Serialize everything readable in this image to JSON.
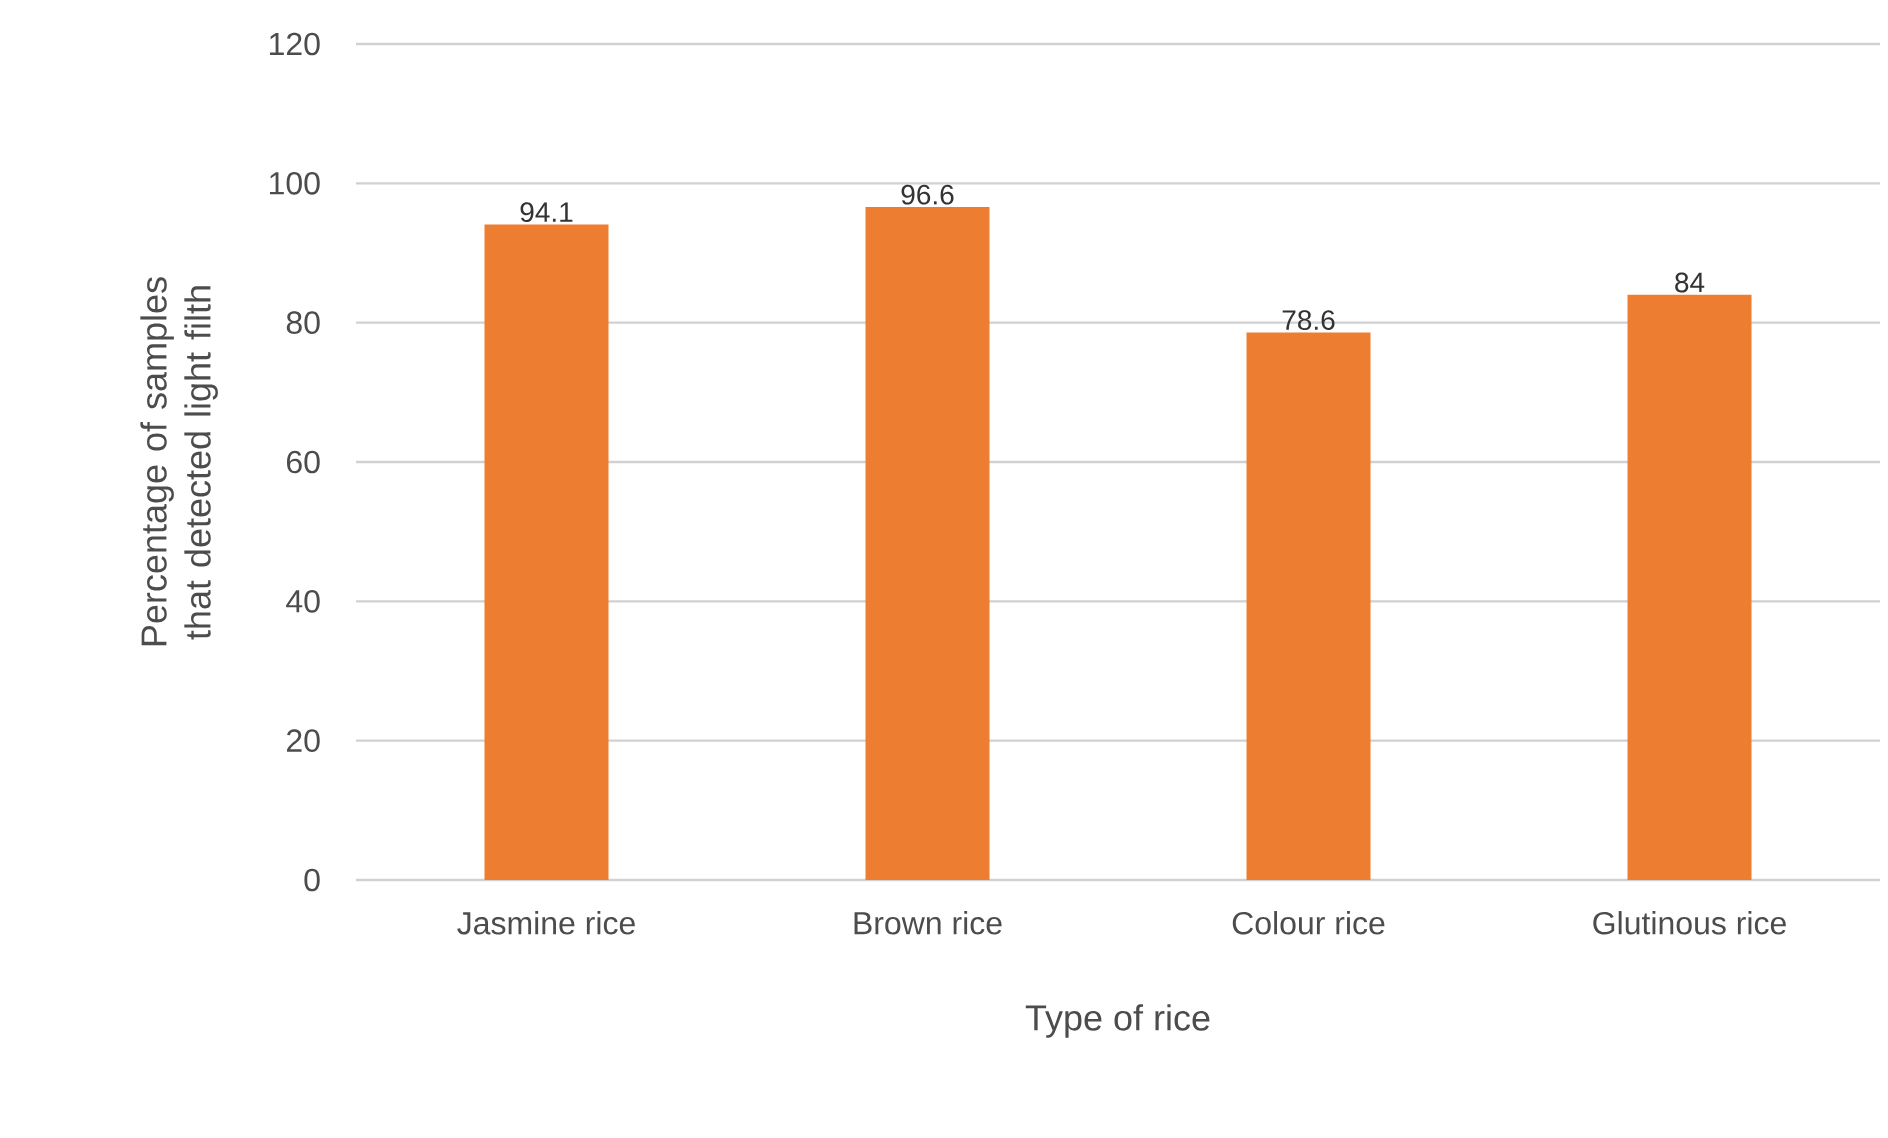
{
  "chart_data": {
    "type": "bar",
    "xlabel": "Type of rice",
    "ylabel": "Percentage of samples that detected light filth",
    "categories": [
      "Jasmine rice",
      "Brown rice",
      "Colour rice",
      "Glutinous rice"
    ],
    "values": [
      94.1,
      96.6,
      78.6,
      84
    ],
    "value_labels": [
      "94.1",
      "96.6",
      "78.6",
      "84"
    ],
    "color": "#ed7d31",
    "ylim": [
      0,
      120
    ],
    "yticks": [
      0,
      20,
      40,
      60,
      80,
      100,
      120
    ],
    "grid": "y"
  }
}
